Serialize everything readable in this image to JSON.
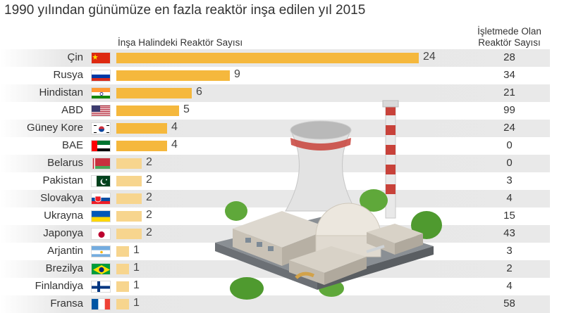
{
  "title": "1990 yılından günümüze en fazla reaktör inşa edilen yıl 2015",
  "chart_data": {
    "type": "bar",
    "orientation": "horizontal",
    "series_label": "İnşa Halindeki Reaktör Sayısı",
    "secondary_label": "İşletmede Olan Reaktör Sayısı",
    "secondary_label_lines": [
      "İşletmede Olan",
      "Reaktör Sayısı"
    ],
    "categories": [
      "Çin",
      "Rusya",
      "Hindistan",
      "ABD",
      "Güney Kore",
      "BAE",
      "Belarus",
      "Pakistan",
      "Slovakya",
      "Ukrayna",
      "Japonya",
      "Arjantin",
      "Brezilya",
      "Finlandiya",
      "Fransa"
    ],
    "under_construction": [
      24,
      9,
      6,
      5,
      4,
      4,
      2,
      2,
      2,
      2,
      2,
      1,
      1,
      1,
      1
    ],
    "operating": [
      28,
      34,
      21,
      99,
      24,
      0,
      0,
      3,
      4,
      15,
      43,
      3,
      2,
      4,
      58
    ],
    "xlim": [
      0,
      24
    ],
    "bar_colors": {
      "dark": "#f5b83d",
      "light": "#f7d58e"
    },
    "flags": [
      "flag-china",
      "flag-russia",
      "flag-india",
      "flag-usa",
      "flag-south-korea",
      "flag-uae",
      "flag-belarus",
      "flag-pakistan",
      "flag-slovakia",
      "flag-ukraine",
      "flag-japan",
      "flag-argentina",
      "flag-brazil",
      "flag-finland",
      "flag-france"
    ]
  }
}
